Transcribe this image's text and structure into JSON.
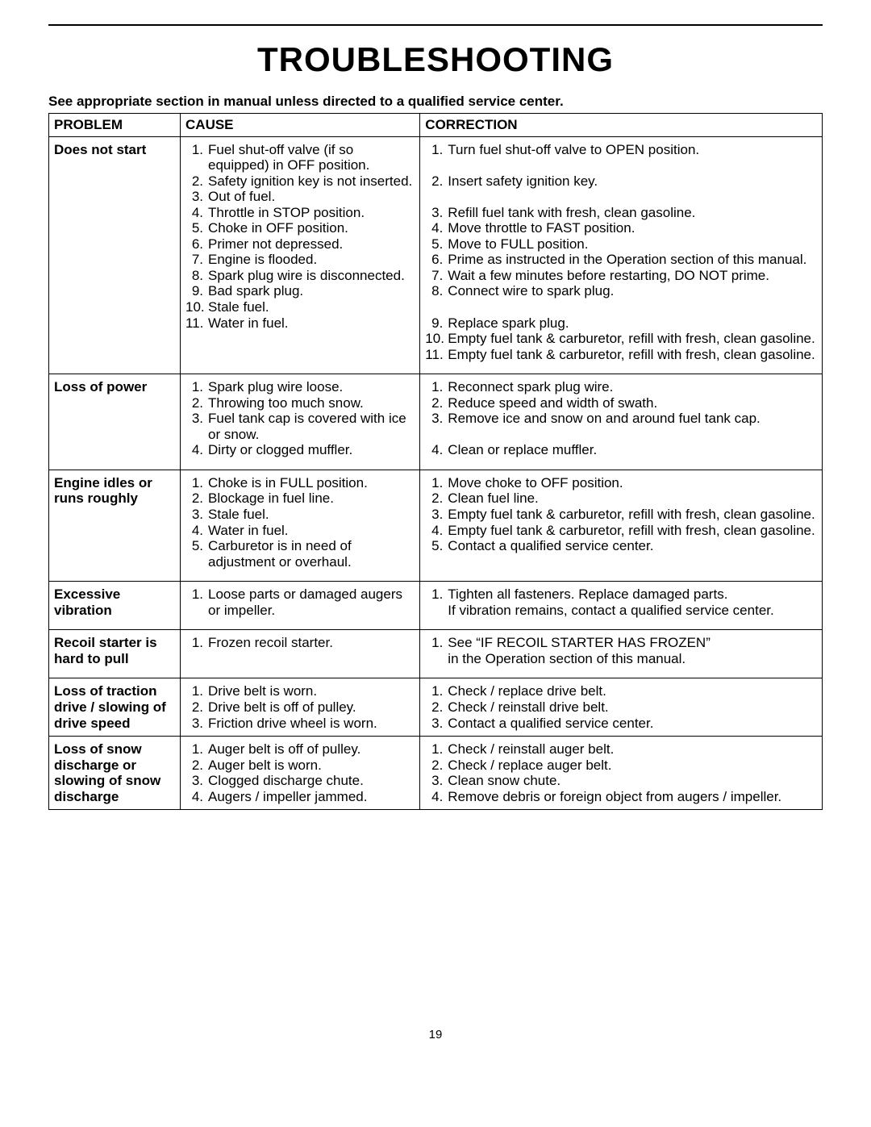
{
  "title": "TROUBLESHOOTING",
  "subtitle": "See appropriate section in manual unless directed to a qualified service center.",
  "page_number": "19",
  "columns": {
    "problem": "PROBLEM",
    "cause": "CAUSE",
    "correction": "CORRECTION"
  },
  "col_widths": {
    "problem": "17%",
    "cause": "31%",
    "correction": "52%"
  },
  "rows": [
    {
      "problem": "Does not start",
      "causes": [
        {
          "n": "1.",
          "t": "Fuel shut-off valve (if so equipped) in OFF position."
        },
        {
          "n": "2.",
          "t": "Safety ignition key is not inserted."
        },
        {
          "n": "3.",
          "t": "Out of fuel."
        },
        {
          "n": "4.",
          "t": "Throttle in STOP position."
        },
        {
          "n": "5.",
          "t": "Choke in OFF position."
        },
        {
          "n": "6.",
          "t": "Primer not depressed."
        },
        {
          "n": "7.",
          "t": "Engine is flooded."
        },
        {
          "n": "8.",
          "t": "Spark plug wire is disconnected."
        },
        {
          "n": "9.",
          "t": "Bad spark plug."
        },
        {
          "n": "10.",
          "t": "Stale fuel."
        },
        {
          "n": "11.",
          "t": "Water in fuel."
        }
      ],
      "corrections": [
        {
          "n": "1.",
          "t": "Turn fuel shut-off valve to OPEN position."
        },
        {
          "n": "",
          "t": " "
        },
        {
          "n": "2.",
          "t": "Insert safety ignition key."
        },
        {
          "n": "",
          "t": " "
        },
        {
          "n": "3.",
          "t": "Refill fuel tank with fresh, clean gasoline."
        },
        {
          "n": "4.",
          "t": "Move throttle to FAST position."
        },
        {
          "n": "5.",
          "t": "Move to FULL position."
        },
        {
          "n": "6.",
          "t": "Prime as instructed in the Operation section of this manual."
        },
        {
          "n": "7.",
          "t": "Wait a few minutes before restarting, DO NOT prime."
        },
        {
          "n": "8.",
          "t": "Connect wire to spark plug."
        },
        {
          "n": "",
          "t": " "
        },
        {
          "n": "9.",
          "t": "Replace spark plug."
        },
        {
          "n": "10.",
          "t": "Empty fuel tank & carburetor, refill with fresh, clean gasoline."
        },
        {
          "n": "11.",
          "t": "Empty fuel tank & carburetor, refill with fresh, clean gasoline."
        }
      ]
    },
    {
      "problem": "Loss of power",
      "causes": [
        {
          "n": "1.",
          "t": "Spark plug wire loose."
        },
        {
          "n": "2.",
          "t": "Throwing too much snow."
        },
        {
          "n": "3.",
          "t": "Fuel tank cap is covered with ice or snow."
        },
        {
          "n": "4.",
          "t": "Dirty or clogged muffler."
        }
      ],
      "corrections": [
        {
          "n": "1.",
          "t": "Reconnect spark plug wire."
        },
        {
          "n": "2.",
          "t": "Reduce speed and width of swath."
        },
        {
          "n": "3.",
          "t": "Remove ice and snow on and around fuel tank cap."
        },
        {
          "n": "",
          "t": " "
        },
        {
          "n": "4.",
          "t": "Clean or replace muffler."
        }
      ]
    },
    {
      "problem": "Engine idles or runs roughly",
      "causes": [
        {
          "n": "1.",
          "t": "Choke is in FULL position."
        },
        {
          "n": "2.",
          "t": "Blockage in fuel line."
        },
        {
          "n": "3.",
          "t": "Stale fuel."
        },
        {
          "n": "4.",
          "t": "Water in fuel."
        },
        {
          "n": "5.",
          "t": "Carburetor is in need of adjustment or overhaul."
        }
      ],
      "corrections": [
        {
          "n": "1.",
          "t": "Move choke to OFF position."
        },
        {
          "n": "2.",
          "t": "Clean fuel line."
        },
        {
          "n": "3.",
          "t": "Empty fuel tank & carburetor, refill with fresh, clean gasoline."
        },
        {
          "n": "4.",
          "t": "Empty fuel tank & carburetor, refill with fresh, clean gasoline."
        },
        {
          "n": "5.",
          "t": "Contact a qualified service center."
        }
      ]
    },
    {
      "problem": "Excessive vibration",
      "causes": [
        {
          "n": "1.",
          "t": "Loose parts or damaged augers or impeller."
        }
      ],
      "corrections": [
        {
          "n": "1.",
          "t": "Tighten all fasteners.  Replace damaged parts."
        },
        {
          "n": "",
          "t": "If vibration remains, contact a qualified service center."
        }
      ]
    },
    {
      "problem": "Recoil starter is hard to pull",
      "causes": [
        {
          "n": "1.",
          "t": "Frozen recoil starter."
        }
      ],
      "corrections": [
        {
          "n": "1.",
          "t": "See “IF RECOIL STARTER HAS FROZEN”"
        },
        {
          "n": "",
          "t": "in the Operation section of this manual."
        }
      ]
    },
    {
      "problem": "Loss of traction drive / slowing of drive speed",
      "causes": [
        {
          "n": "1.",
          "t": "Drive belt is worn."
        },
        {
          "n": "2.",
          "t": "Drive belt is off of pulley."
        },
        {
          "n": "3.",
          "t": "Friction drive wheel is worn."
        }
      ],
      "corrections": [
        {
          "n": "1.",
          "t": "Check / replace drive belt."
        },
        {
          "n": "2.",
          "t": "Check / reinstall drive belt."
        },
        {
          "n": "3.",
          "t": "Contact a qualified service center."
        }
      ],
      "tight": true
    },
    {
      "problem": "Loss of snow discharge or slowing of snow discharge",
      "causes": [
        {
          "n": "1.",
          "t": "Auger belt is off of pulley."
        },
        {
          "n": "2.",
          "t": "Auger belt is worn."
        },
        {
          "n": "3.",
          "t": "Clogged discharge chute."
        },
        {
          "n": "4.",
          "t": "Augers / impeller jammed."
        }
      ],
      "corrections": [
        {
          "n": "1.",
          "t": "Check / reinstall auger belt."
        },
        {
          "n": "2.",
          "t": "Check / replace auger belt."
        },
        {
          "n": "3.",
          "t": "Clean snow chute."
        },
        {
          "n": "4.",
          "t": "Remove debris or foreign object from augers / impeller."
        }
      ],
      "tight": true
    }
  ]
}
